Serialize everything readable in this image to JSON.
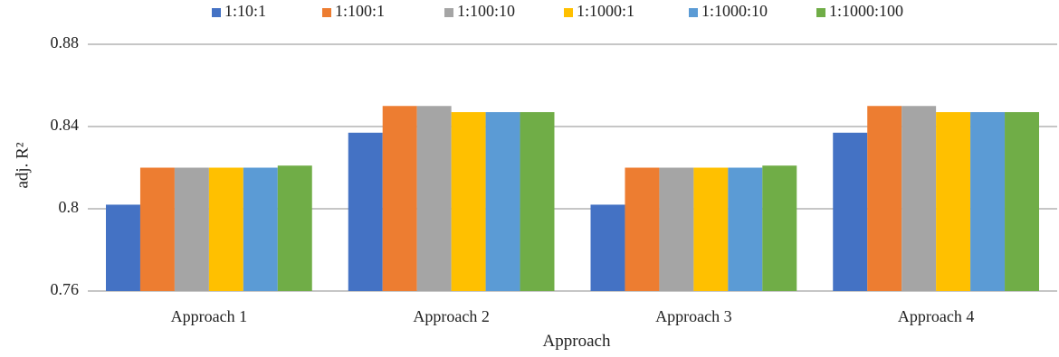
{
  "chart_data": {
    "type": "bar",
    "title": "",
    "xlabel": "Approach",
    "ylabel": "adj. R²",
    "ylim": [
      0.76,
      0.88
    ],
    "yticks": [
      "0.76",
      "0.8",
      "0.84",
      "0.88"
    ],
    "grid": "horizontal",
    "legend_position": "top",
    "categories": [
      "Approach 1",
      "Approach 2",
      "Approach 3",
      "Approach 4"
    ],
    "series": [
      {
        "name": "1:10:1",
        "color": "#4472C4",
        "values": [
          0.802,
          0.837,
          0.802,
          0.837
        ]
      },
      {
        "name": "1:100:1",
        "color": "#ED7D31",
        "values": [
          0.82,
          0.85,
          0.82,
          0.85
        ]
      },
      {
        "name": "1:100:10",
        "color": "#A5A5A5",
        "values": [
          0.82,
          0.85,
          0.82,
          0.85
        ]
      },
      {
        "name": "1:1000:1",
        "color": "#FFC000",
        "values": [
          0.82,
          0.847,
          0.82,
          0.847
        ]
      },
      {
        "name": "1:1000:10",
        "color": "#5B9BD5",
        "values": [
          0.82,
          0.847,
          0.82,
          0.847
        ]
      },
      {
        "name": "1:1000:100",
        "color": "#70AD47",
        "values": [
          0.821,
          0.847,
          0.821,
          0.847
        ]
      }
    ]
  }
}
